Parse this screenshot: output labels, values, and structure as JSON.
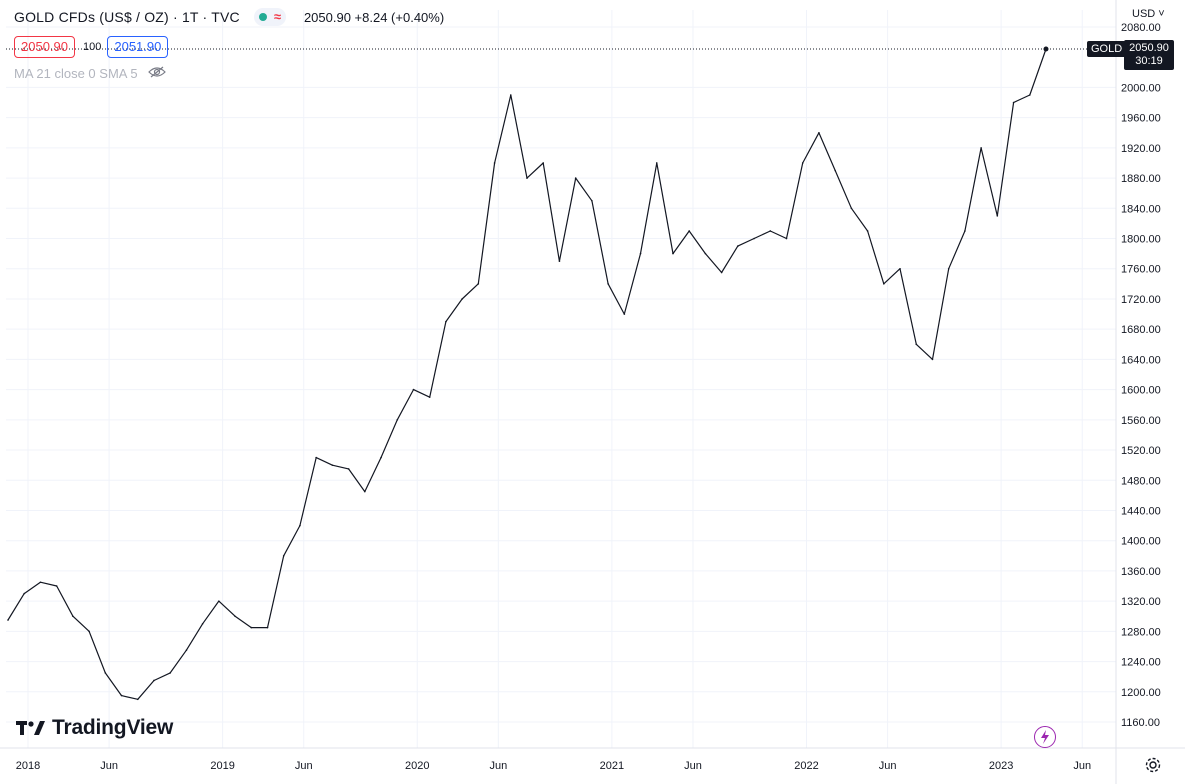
{
  "header": {
    "symbol": "GOLD CFDs (US$ / OZ) · 1T · TVC",
    "last_change": "2050.90  +8.24 (+0.40%)"
  },
  "quote": {
    "sell": "2050.90",
    "spread": "100",
    "buy": "2051.90"
  },
  "indicator": {
    "label": "MA 21 close 0 SMA 5"
  },
  "price_scale": {
    "currency": "USD",
    "symbol_tag": "GOLD",
    "last_price": "2050.90",
    "countdown": "30:19"
  },
  "branding": {
    "logo_text": "TradingView"
  },
  "icons": {
    "eye": "eye-hidden-icon",
    "dot": "market-open-dot-icon",
    "wave": "delayed-data-icon",
    "bolt": "lightning-icon",
    "gear": "gear-icon",
    "chevron": "chevron-down-icon"
  },
  "colors": {
    "line": "#131722",
    "grid": "#f0f3fa",
    "sell": "#f23645",
    "buy": "#2962ff",
    "accent": "#9c27b0"
  },
  "chart_data": {
    "type": "line",
    "series": [
      {
        "x": [
          "2018-01",
          "2018-02",
          "2018-03",
          "2018-04",
          "2018-05",
          "2018-06",
          "2018-07",
          "2018-08",
          "2018-09",
          "2018-10",
          "2018-11",
          "2018-12",
          "2019-01",
          "2019-02",
          "2019-03",
          "2019-04",
          "2019-05",
          "2019-06",
          "2019-07",
          "2019-08",
          "2019-09",
          "2019-10",
          "2019-11",
          "2019-12",
          "2020-01",
          "2020-02",
          "2020-03",
          "2020-04",
          "2020-05",
          "2020-06",
          "2020-07",
          "2020-08",
          "2020-09",
          "2020-10",
          "2020-11",
          "2020-12",
          "2021-01",
          "2021-02",
          "2021-03",
          "2021-04",
          "2021-05",
          "2021-06",
          "2021-07",
          "2021-08",
          "2021-09",
          "2021-10",
          "2021-11",
          "2021-12",
          "2022-01",
          "2022-02",
          "2022-03",
          "2022-04",
          "2022-05",
          "2022-06",
          "2022-07",
          "2022-08",
          "2022-09",
          "2022-10",
          "2022-11",
          "2022-12",
          "2023-01",
          "2023-02",
          "2023-03",
          "2023-04",
          "2023-05"
        ],
        "y": [
          1295,
          1330,
          1345,
          1340,
          1300,
          1280,
          1225,
          1195,
          1190,
          1215,
          1225,
          1255,
          1290,
          1320,
          1300,
          1285,
          1285,
          1380,
          1420,
          1510,
          1500,
          1495,
          1465,
          1510,
          1560,
          1600,
          1590,
          1690,
          1720,
          1740,
          1900,
          1990,
          1880,
          1900,
          1770,
          1880,
          1850,
          1740,
          1700,
          1780,
          1900,
          1780,
          1810,
          1780,
          1755,
          1790,
          1800,
          1810,
          1800,
          1900,
          1940,
          1890,
          1840,
          1810,
          1740,
          1760,
          1660,
          1640,
          1760,
          1810,
          1920,
          1830,
          1980,
          1990,
          2050.9
        ]
      }
    ],
    "x_ticks": [
      "2018",
      "Jun",
      "2019",
      "Jun",
      "2020",
      "Jun",
      "2021",
      "Jun",
      "2022",
      "Jun",
      "2023",
      "Jun"
    ],
    "y_ticks": [
      "1160.00",
      "1200.00",
      "1240.00",
      "1280.00",
      "1320.00",
      "1360.00",
      "1400.00",
      "1440.00",
      "1480.00",
      "1520.00",
      "1560.00",
      "1600.00",
      "1640.00",
      "1680.00",
      "1720.00",
      "1760.00",
      "1800.00",
      "1840.00",
      "1880.00",
      "1920.00",
      "1960.00",
      "2000.00",
      "2080.00"
    ],
    "ylim": [
      1140,
      2090
    ],
    "last_value": 2050.9,
    "grid": true
  }
}
